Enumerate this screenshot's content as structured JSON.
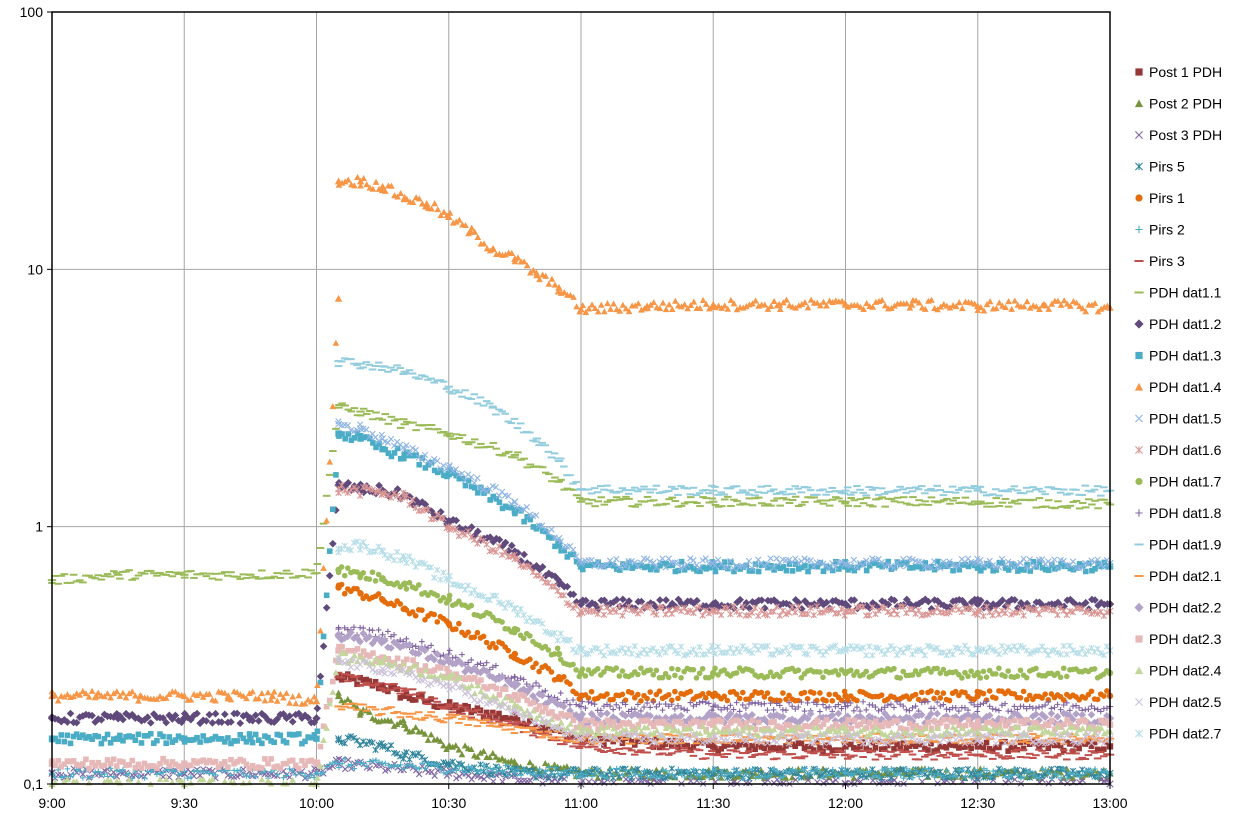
{
  "chart_data": {
    "type": "scatter",
    "title": "",
    "xlabel": "",
    "ylabel": "",
    "x_axis": {
      "min": "9:00",
      "max": "13:00",
      "ticks": [
        "9:00",
        "9:30",
        "10:00",
        "10:30",
        "11:00",
        "11:30",
        "12:00",
        "12:30",
        "13:00"
      ]
    },
    "y_axis": {
      "scale": "log",
      "min": 0.1,
      "max": 100,
      "ticks": [
        "0,1",
        "1",
        "10",
        "100"
      ]
    },
    "grid": true,
    "legend_position": "right",
    "series": [
      {
        "name": "Post 1 PDH",
        "color": "#953735",
        "marker": "square",
        "points": [
          [
            "10:05",
            0.26
          ],
          [
            "10:15",
            0.24
          ],
          [
            "10:20",
            0.22
          ],
          [
            "10:30",
            0.2
          ],
          [
            "10:45",
            0.18
          ],
          [
            "11:00",
            0.15
          ],
          [
            "11:30",
            0.14
          ],
          [
            "12:00",
            0.14
          ],
          [
            "12:30",
            0.14
          ],
          [
            "13:00",
            0.14
          ]
        ]
      },
      {
        "name": "Post 2 PDH",
        "color": "#77933C",
        "marker": "triangle",
        "points": [
          [
            "10:05",
            0.22
          ],
          [
            "10:10",
            0.19
          ],
          [
            "10:20",
            0.17
          ],
          [
            "10:30",
            0.14
          ],
          [
            "10:45",
            0.12
          ],
          [
            "11:00",
            0.11
          ],
          [
            "11:30",
            0.11
          ],
          [
            "12:00",
            0.11
          ],
          [
            "12:30",
            0.11
          ],
          [
            "13:00",
            0.11
          ]
        ]
      },
      {
        "name": "Post 3 PDH",
        "color": "#7F64A1",
        "marker": "x",
        "points": [
          [
            "9:00",
            0.11
          ],
          [
            "9:30",
            0.11
          ],
          [
            "10:00",
            0.11
          ],
          [
            "10:05",
            0.12
          ],
          [
            "10:30",
            0.11
          ],
          [
            "11:00",
            0.1
          ],
          [
            "12:00",
            0.1
          ],
          [
            "13:00",
            0.1
          ]
        ]
      },
      {
        "name": "Pirs 5",
        "color": "#31859C",
        "marker": "star",
        "points": [
          [
            "10:05",
            0.15
          ],
          [
            "10:15",
            0.14
          ],
          [
            "10:20",
            0.13
          ],
          [
            "10:30",
            0.12
          ],
          [
            "10:45",
            0.11
          ],
          [
            "11:00",
            0.11
          ],
          [
            "11:30",
            0.11
          ],
          [
            "12:00",
            0.11
          ],
          [
            "12:30",
            0.11
          ],
          [
            "13:00",
            0.11
          ]
        ]
      },
      {
        "name": "Pirs 1",
        "color": "#E46C0A",
        "marker": "circle",
        "points": [
          [
            "10:05",
            0.58
          ],
          [
            "10:10",
            0.55
          ],
          [
            "10:15",
            0.52
          ],
          [
            "10:20",
            0.48
          ],
          [
            "10:30",
            0.42
          ],
          [
            "10:45",
            0.32
          ],
          [
            "10:55",
            0.26
          ],
          [
            "11:00",
            0.22
          ],
          [
            "11:30",
            0.22
          ],
          [
            "12:00",
            0.22
          ],
          [
            "12:30",
            0.22
          ],
          [
            "13:00",
            0.22
          ]
        ]
      },
      {
        "name": "Pirs 2",
        "color": "#4BACC6",
        "marker": "plus",
        "points": [
          [
            "9:00",
            0.11
          ],
          [
            "10:00",
            0.11
          ],
          [
            "10:05",
            0.12
          ],
          [
            "11:00",
            0.11
          ],
          [
            "12:00",
            0.11
          ],
          [
            "13:00",
            0.11
          ]
        ]
      },
      {
        "name": "Pirs 3",
        "color": "#C0504D",
        "marker": "dash",
        "points": [
          [
            "10:05",
            0.26
          ],
          [
            "10:20",
            0.23
          ],
          [
            "10:30",
            0.2
          ],
          [
            "10:45",
            0.17
          ],
          [
            "11:00",
            0.14
          ],
          [
            "11:30",
            0.13
          ],
          [
            "12:00",
            0.13
          ],
          [
            "12:30",
            0.13
          ],
          [
            "13:00",
            0.13
          ]
        ]
      },
      {
        "name": "PDH dat1.1",
        "color": "#9BBB59",
        "marker": "dash",
        "points": [
          [
            "9:00",
            0.62
          ],
          [
            "9:15",
            0.65
          ],
          [
            "9:30",
            0.65
          ],
          [
            "9:45",
            0.65
          ],
          [
            "10:00",
            0.66
          ],
          [
            "10:05",
            2.9
          ],
          [
            "10:10",
            2.8
          ],
          [
            "10:20",
            2.5
          ],
          [
            "10:30",
            2.3
          ],
          [
            "10:45",
            1.9
          ],
          [
            "10:55",
            1.5
          ],
          [
            "11:00",
            1.25
          ],
          [
            "11:30",
            1.25
          ],
          [
            "12:00",
            1.25
          ],
          [
            "12:30",
            1.25
          ],
          [
            "13:00",
            1.22
          ]
        ]
      },
      {
        "name": "PDH dat1.2",
        "color": "#604A7B",
        "marker": "diamond",
        "points": [
          [
            "9:00",
            0.18
          ],
          [
            "9:15",
            0.18
          ],
          [
            "9:30",
            0.18
          ],
          [
            "9:45",
            0.18
          ],
          [
            "10:00",
            0.18
          ],
          [
            "10:05",
            1.45
          ],
          [
            "10:10",
            1.4
          ],
          [
            "10:15",
            1.38
          ],
          [
            "10:20",
            1.32
          ],
          [
            "10:30",
            1.05
          ],
          [
            "10:45",
            0.8
          ],
          [
            "10:55",
            0.6
          ],
          [
            "11:00",
            0.5
          ],
          [
            "11:30",
            0.5
          ],
          [
            "12:00",
            0.5
          ],
          [
            "12:30",
            0.5
          ],
          [
            "13:00",
            0.5
          ]
        ]
      },
      {
        "name": "PDH dat1.3",
        "color": "#4BACC6",
        "marker": "square",
        "points": [
          [
            "9:00",
            0.15
          ],
          [
            "9:15",
            0.15
          ],
          [
            "9:30",
            0.15
          ],
          [
            "9:45",
            0.15
          ],
          [
            "10:00",
            0.15
          ],
          [
            "10:05",
            2.3
          ],
          [
            "10:10",
            2.2
          ],
          [
            "10:15",
            2.0
          ],
          [
            "10:20",
            1.9
          ],
          [
            "10:30",
            1.6
          ],
          [
            "10:45",
            1.15
          ],
          [
            "10:55",
            0.85
          ],
          [
            "11:00",
            0.7
          ],
          [
            "11:30",
            0.7
          ],
          [
            "12:00",
            0.7
          ],
          [
            "12:30",
            0.7
          ],
          [
            "13:00",
            0.7
          ]
        ]
      },
      {
        "name": "PDH dat1.4",
        "color": "#F79646",
        "marker": "triangle",
        "points": [
          [
            "9:00",
            0.22
          ],
          [
            "9:10",
            0.22
          ],
          [
            "9:20",
            0.22
          ],
          [
            "9:30",
            0.22
          ],
          [
            "9:40",
            0.22
          ],
          [
            "9:50",
            0.22
          ],
          [
            "10:00",
            0.21
          ],
          [
            "10:05",
            7.7
          ],
          [
            "10:05",
            22
          ],
          [
            "10:10",
            22
          ],
          [
            "10:15",
            21
          ],
          [
            "10:20",
            19
          ],
          [
            "10:25",
            18
          ],
          [
            "10:30",
            16
          ],
          [
            "10:35",
            14
          ],
          [
            "10:40",
            12
          ],
          [
            "10:45",
            11
          ],
          [
            "10:50",
            9.5
          ],
          [
            "10:55",
            8.5
          ],
          [
            "11:00",
            7.0
          ],
          [
            "11:15",
            7.2
          ],
          [
            "11:30",
            7.3
          ],
          [
            "11:45",
            7.3
          ],
          [
            "12:00",
            7.3
          ],
          [
            "12:15",
            7.3
          ],
          [
            "12:30",
            7.2
          ],
          [
            "12:45",
            7.3
          ],
          [
            "13:00",
            7.1
          ]
        ]
      },
      {
        "name": "PDH dat1.5",
        "color": "#8EB4E3",
        "marker": "x",
        "points": [
          [
            "10:05",
            2.5
          ],
          [
            "10:10",
            2.4
          ],
          [
            "10:15",
            2.2
          ],
          [
            "10:20",
            2.0
          ],
          [
            "10:30",
            1.7
          ],
          [
            "10:45",
            1.25
          ],
          [
            "10:55",
            0.9
          ],
          [
            "11:00",
            0.72
          ],
          [
            "11:30",
            0.72
          ],
          [
            "12:00",
            0.72
          ],
          [
            "12:30",
            0.72
          ],
          [
            "13:00",
            0.72
          ]
        ]
      },
      {
        "name": "PDH dat1.6",
        "color": "#D99694",
        "marker": "star",
        "points": [
          [
            "10:05",
            1.4
          ],
          [
            "10:15",
            1.35
          ],
          [
            "10:20",
            1.3
          ],
          [
            "10:30",
            1.0
          ],
          [
            "10:45",
            0.75
          ],
          [
            "11:00",
            0.47
          ],
          [
            "11:30",
            0.47
          ],
          [
            "12:00",
            0.47
          ],
          [
            "12:30",
            0.47
          ],
          [
            "13:00",
            0.47
          ]
        ]
      },
      {
        "name": "PDH dat1.7",
        "color": "#9BBB59",
        "marker": "circle",
        "points": [
          [
            "10:05",
            0.68
          ],
          [
            "10:10",
            0.65
          ],
          [
            "10:15",
            0.63
          ],
          [
            "10:20",
            0.6
          ],
          [
            "10:30",
            0.52
          ],
          [
            "10:45",
            0.4
          ],
          [
            "10:55",
            0.32
          ],
          [
            "11:00",
            0.27
          ],
          [
            "11:30",
            0.27
          ],
          [
            "12:00",
            0.27
          ],
          [
            "12:30",
            0.27
          ],
          [
            "13:00",
            0.27
          ]
        ]
      },
      {
        "name": "PDH dat1.8",
        "color": "#8064A2",
        "marker": "plus",
        "points": [
          [
            "10:05",
            0.4
          ],
          [
            "10:15",
            0.38
          ],
          [
            "10:30",
            0.32
          ],
          [
            "10:45",
            0.26
          ],
          [
            "11:00",
            0.2
          ],
          [
            "11:30",
            0.2
          ],
          [
            "12:00",
            0.2
          ],
          [
            "12:30",
            0.2
          ],
          [
            "13:00",
            0.2
          ]
        ]
      },
      {
        "name": "PDH dat1.9",
        "color": "#93CDDD",
        "marker": "dash",
        "points": [
          [
            "10:05",
            4.4
          ],
          [
            "10:10",
            4.3
          ],
          [
            "10:15",
            4.2
          ],
          [
            "10:20",
            4.0
          ],
          [
            "10:30",
            3.5
          ],
          [
            "10:40",
            2.9
          ],
          [
            "10:50",
            2.2
          ],
          [
            "10:55",
            1.8
          ],
          [
            "11:00",
            1.4
          ],
          [
            "11:30",
            1.38
          ],
          [
            "12:00",
            1.38
          ],
          [
            "12:30",
            1.38
          ],
          [
            "13:00",
            1.38
          ]
        ]
      },
      {
        "name": "PDH dat2.1",
        "color": "#F79646",
        "marker": "dash",
        "points": [
          [
            "10:05",
            0.2
          ],
          [
            "10:30",
            0.18
          ],
          [
            "11:00",
            0.15
          ],
          [
            "11:30",
            0.15
          ],
          [
            "12:00",
            0.15
          ],
          [
            "12:30",
            0.15
          ],
          [
            "13:00",
            0.15
          ]
        ]
      },
      {
        "name": "PDH dat2.2",
        "color": "#B3A2C7",
        "marker": "diamond",
        "points": [
          [
            "10:05",
            0.38
          ],
          [
            "10:15",
            0.36
          ],
          [
            "10:30",
            0.3
          ],
          [
            "10:45",
            0.24
          ],
          [
            "11:00",
            0.18
          ],
          [
            "11:30",
            0.18
          ],
          [
            "12:00",
            0.18
          ],
          [
            "12:30",
            0.18
          ],
          [
            "13:00",
            0.18
          ]
        ]
      },
      {
        "name": "PDH dat2.3",
        "color": "#E6B9B8",
        "marker": "square",
        "points": [
          [
            "9:00",
            0.12
          ],
          [
            "9:30",
            0.12
          ],
          [
            "10:00",
            0.12
          ],
          [
            "10:05",
            0.33
          ],
          [
            "10:15",
            0.31
          ],
          [
            "10:30",
            0.27
          ],
          [
            "10:45",
            0.22
          ],
          [
            "11:00",
            0.17
          ],
          [
            "11:30",
            0.17
          ],
          [
            "12:00",
            0.17
          ],
          [
            "12:30",
            0.17
          ],
          [
            "13:00",
            0.17
          ]
        ]
      },
      {
        "name": "PDH dat2.4",
        "color": "#C3D69B",
        "marker": "triangle",
        "points": [
          [
            "9:00",
            0.1
          ],
          [
            "9:30",
            0.1
          ],
          [
            "10:00",
            0.1
          ],
          [
            "10:05",
            0.31
          ],
          [
            "10:15",
            0.3
          ],
          [
            "10:30",
            0.26
          ],
          [
            "10:45",
            0.2
          ],
          [
            "11:00",
            0.16
          ],
          [
            "11:30",
            0.16
          ],
          [
            "12:00",
            0.16
          ],
          [
            "12:30",
            0.16
          ],
          [
            "13:00",
            0.16
          ]
        ]
      },
      {
        "name": "PDH dat2.5",
        "color": "#CCC1DA",
        "marker": "x",
        "points": [
          [
            "10:05",
            0.3
          ],
          [
            "10:15",
            0.28
          ],
          [
            "10:30",
            0.24
          ],
          [
            "10:45",
            0.19
          ],
          [
            "11:00",
            0.15
          ],
          [
            "11:30",
            0.15
          ],
          [
            "12:00",
            0.15
          ],
          [
            "12:30",
            0.15
          ],
          [
            "13:00",
            0.15
          ]
        ]
      },
      {
        "name": "PDH dat2.7",
        "color": "#B7DEE8",
        "marker": "star",
        "points": [
          [
            "10:05",
            0.82
          ],
          [
            "10:10",
            0.85
          ],
          [
            "10:15",
            0.8
          ],
          [
            "10:20",
            0.75
          ],
          [
            "10:30",
            0.62
          ],
          [
            "10:45",
            0.48
          ],
          [
            "11:00",
            0.33
          ],
          [
            "11:30",
            0.33
          ],
          [
            "12:00",
            0.33
          ],
          [
            "12:30",
            0.33
          ],
          [
            "13:00",
            0.33
          ]
        ]
      }
    ]
  }
}
